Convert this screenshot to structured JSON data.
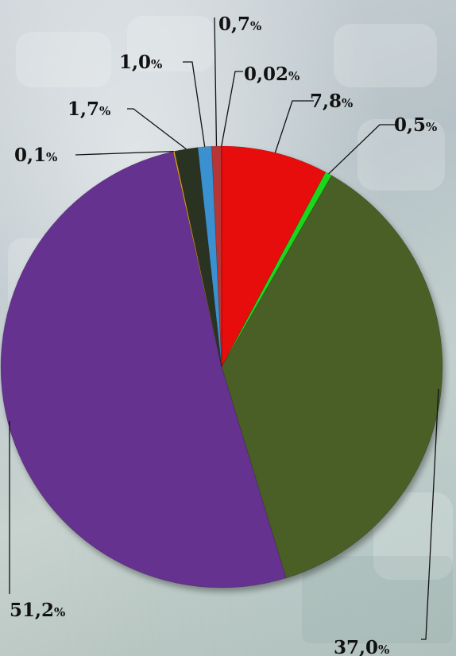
{
  "chart_data": {
    "type": "pie",
    "title": "",
    "start": "12 o'clock",
    "direction": "clockwise",
    "legend": "none",
    "unit_symbol": "%",
    "slices": [
      {
        "value": 7.8,
        "label": "7,8",
        "color": "#e80808"
      },
      {
        "value": 0.5,
        "label": "0,5",
        "color": "#1fd61f"
      },
      {
        "value": 37.0,
        "label": "37,0",
        "color": "#4a5e25"
      },
      {
        "value": 51.2,
        "label": "51,2",
        "color": "#663090"
      },
      {
        "value": 0.1,
        "label": "0,1",
        "color": "#e8a317"
      },
      {
        "value": 1.7,
        "label": "1,7",
        "color": "#2b3320"
      },
      {
        "value": 1.0,
        "label": "1,0",
        "color": "#3a90d0"
      },
      {
        "value": 0.7,
        "label": "0,7",
        "color": "#b83434"
      },
      {
        "value": 0.02,
        "label": "0,02",
        "color": "#7a2a2a"
      }
    ]
  }
}
